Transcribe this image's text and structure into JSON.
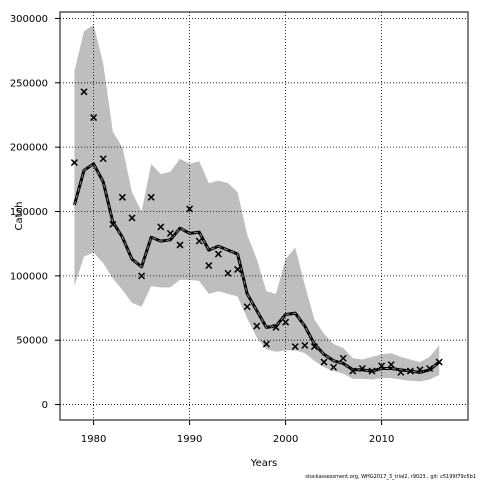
{
  "chart_data": {
    "type": "line",
    "xlabel": "Years",
    "ylabel": "Catch",
    "footnote": "stockassessment.org, WHG2017_3_trial2, r9023 , git: c5199f79c5b1",
    "xlim": [
      1976.5,
      2019.0
    ],
    "ylim": [
      -12000,
      305000
    ],
    "xticks": [
      1980,
      1990,
      2000,
      2010
    ],
    "yticks": [
      0,
      50000,
      100000,
      150000,
      200000,
      250000,
      300000
    ],
    "grid": true,
    "colors": {
      "band": "#bebebe",
      "line": "#000000",
      "grid": "#000000"
    },
    "series": [
      {
        "kind": "confidence_band",
        "x": [
          1978,
          1979,
          1980,
          1981,
          1982,
          1983,
          1984,
          1985,
          1986,
          1987,
          1988,
          1989,
          1990,
          1991,
          1992,
          1993,
          1994,
          1995,
          1996,
          1997,
          1998,
          1999,
          2000,
          2001,
          2002,
          2003,
          2004,
          2005,
          2006,
          2007,
          2008,
          2009,
          2010,
          2011,
          2012,
          2013,
          2014,
          2015,
          2016
        ],
        "lower": [
          92000,
          115000,
          118000,
          110000,
          98000,
          89000,
          79000,
          76000,
          92000,
          91000,
          91000,
          97000,
          97000,
          96000,
          86000,
          88000,
          86000,
          84000,
          67000,
          52000,
          43000,
          41000,
          42000,
          42000,
          40000,
          34000,
          29000,
          26000,
          24000,
          20000,
          20000,
          19500,
          20500,
          20500,
          19500,
          18500,
          18000,
          19500,
          23000
        ],
        "upper": [
          259000,
          290000,
          295000,
          265000,
          212000,
          200000,
          165000,
          150000,
          187000,
          179000,
          181000,
          191000,
          187000,
          189000,
          172000,
          174000,
          172000,
          165000,
          132000,
          113000,
          88000,
          86000,
          113000,
          122000,
          93000,
          66000,
          55000,
          47000,
          44000,
          36000,
          35000,
          37000,
          39000,
          40000,
          37000,
          35000,
          33000,
          37000,
          46000
        ]
      },
      {
        "kind": "estimate",
        "x": [
          1978,
          1979,
          1980,
          1981,
          1982,
          1983,
          1984,
          1985,
          1986,
          1987,
          1988,
          1989,
          1990,
          1991,
          1992,
          1993,
          1994,
          1995,
          1996,
          1997,
          1998,
          1999,
          2000,
          2001,
          2002,
          2003,
          2004,
          2005,
          2006,
          2007,
          2008,
          2009,
          2010,
          2011,
          2012,
          2013,
          2014,
          2015,
          2016
        ],
        "y": [
          155000,
          182000,
          187000,
          173000,
          142000,
          130000,
          113000,
          107000,
          130000,
          127000,
          128000,
          137000,
          133000,
          134000,
          120000,
          123000,
          120000,
          117000,
          86000,
          73000,
          60000,
          61000,
          70000,
          71000,
          61000,
          47000,
          39000,
          34000,
          32000,
          27000,
          27000,
          26000,
          28000,
          28000,
          27000,
          26000,
          25000,
          27000,
          33000
        ]
      },
      {
        "kind": "observed",
        "x": [
          1978,
          1979,
          1980,
          1981,
          1982,
          1983,
          1984,
          1985,
          1986,
          1987,
          1988,
          1989,
          1990,
          1991,
          1992,
          1993,
          1994,
          1995,
          1996,
          1997,
          1998,
          1999,
          2000,
          2001,
          2002,
          2003,
          2004,
          2005,
          2006,
          2007,
          2008,
          2009,
          2010,
          2011,
          2012,
          2013,
          2014,
          2015,
          2016
        ],
        "y": [
          188000,
          243000,
          223000,
          191000,
          140000,
          161000,
          145000,
          100000,
          161000,
          138000,
          133000,
          124000,
          152000,
          127000,
          108000,
          117000,
          102000,
          105000,
          76000,
          61000,
          47000,
          60000,
          64000,
          45000,
          46000,
          45000,
          33000,
          29000,
          36000,
          26000,
          28000,
          26000,
          30000,
          31000,
          25000,
          26000,
          27000,
          28000,
          33000
        ]
      }
    ]
  }
}
